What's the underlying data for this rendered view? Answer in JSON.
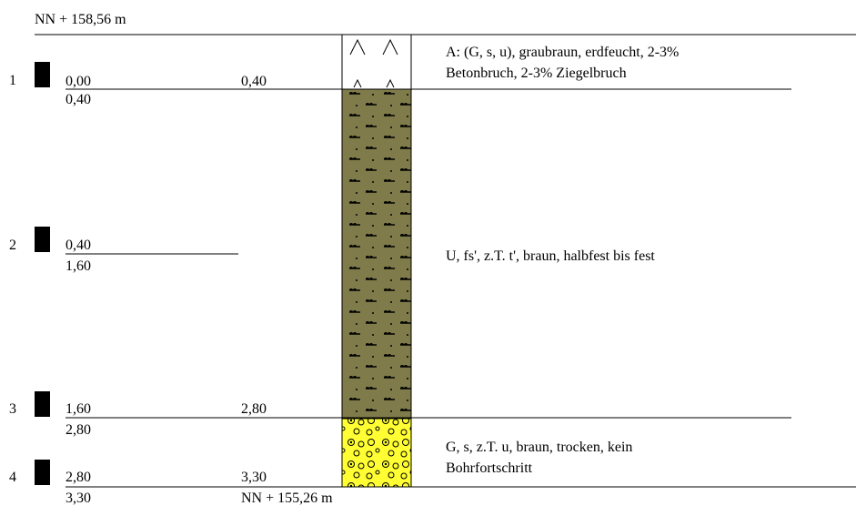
{
  "header": {
    "top_level": "NN + 158,56 m"
  },
  "samples": [
    {
      "number": "1",
      "depth_from": "0,00",
      "depth_to": "0,40",
      "below": "0,40"
    },
    {
      "number": "2",
      "depth_from": "0,40",
      "below": "1,60"
    },
    {
      "number": "3",
      "depth_from": "1,60",
      "depth_to": "2,80",
      "below": "2,80"
    },
    {
      "number": "4",
      "depth_from": "2,80",
      "depth_to": "3,30",
      "below": "3,30"
    }
  ],
  "layers": [
    {
      "description": [
        "A: (G, s, u), graubraun, erdfeucht, 2-3%",
        "Betonbruch, 2-3% Ziegelbruch"
      ]
    },
    {
      "description": [
        "U, fs', z.T. t', braun, halbfest bis fest"
      ]
    },
    {
      "description": [
        "G, s, z.T. u, braun, trocken, kein",
        "Bohrfortschritt"
      ]
    }
  ],
  "footer": {
    "bottom_level": "NN + 155,26 m"
  }
}
